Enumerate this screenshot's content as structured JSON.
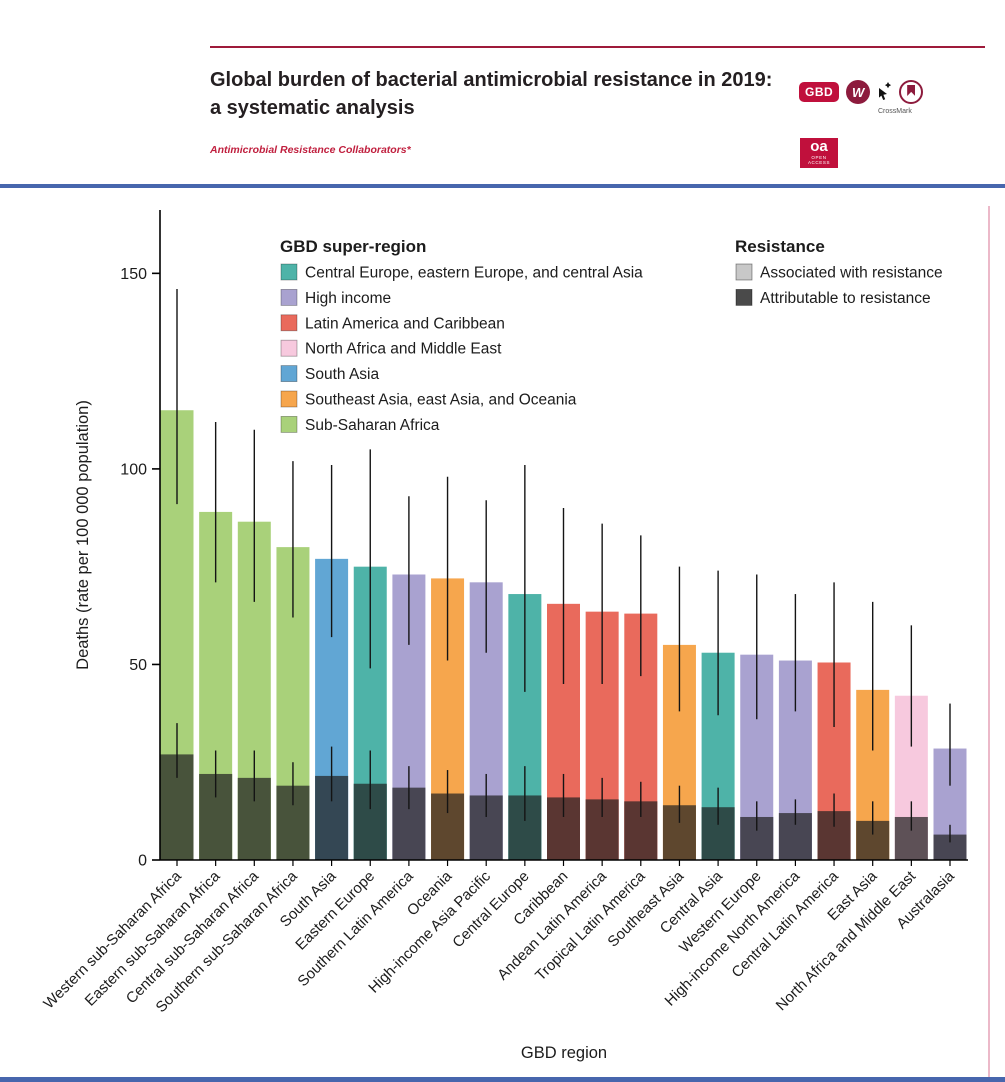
{
  "header": {
    "title_line1": "Global burden of bacterial antimicrobial resistance in 2019:",
    "title_line2": "a systematic analysis",
    "authors": "Antimicrobial Resistance Collaborators*",
    "gbd_badge": "GBD",
    "wellcome_letter": "W",
    "crossmark_label": "CrossMark",
    "oa_badge": "oa",
    "oa_sub": "OPEN ACCESS"
  },
  "accent_colors": {
    "lancet_red": "#9e1a3a",
    "divider_blue": "#4766ad",
    "page_edge_pink": "#ecb9c9"
  },
  "chart_data": {
    "type": "bar",
    "title": "",
    "xlabel": "GBD region",
    "ylabel": "Deaths (rate per 100 000 population)",
    "ylim": [
      0,
      165
    ],
    "yticks": [
      0,
      50,
      100,
      150
    ],
    "grid": false,
    "legend_position": "top-inside",
    "error_bars": true,
    "legend": {
      "super_region_title": "GBD super-region",
      "super_regions": [
        {
          "name": "Central Europe, eastern Europe, and central Asia",
          "color": "#4eb3a8"
        },
        {
          "name": "High income",
          "color": "#a9a2d0"
        },
        {
          "name": "Latin America and Caribbean",
          "color": "#e96a5c"
        },
        {
          "name": "North Africa and Middle East",
          "color": "#f7c9de"
        },
        {
          "name": "South Asia",
          "color": "#61a6d4"
        },
        {
          "name": "Southeast Asia, east Asia, and Oceania",
          "color": "#f6a64d"
        },
        {
          "name": "Sub-Saharan Africa",
          "color": "#a9d17a"
        }
      ],
      "resistance_title": "Resistance",
      "resistance_items": [
        {
          "name": "Associated with resistance",
          "color": "#c8c8c8"
        },
        {
          "name": "Attributable to resistance",
          "color": "#4a4a4a"
        }
      ]
    },
    "regions": [
      {
        "label": "Western sub-Saharan Africa",
        "super_region": "Sub-Saharan Africa",
        "associated": 115,
        "associated_ci": [
          91,
          146
        ],
        "attributable": 27,
        "attributable_ci": [
          21,
          35
        ]
      },
      {
        "label": "Eastern sub-Saharan Africa",
        "super_region": "Sub-Saharan Africa",
        "associated": 89,
        "associated_ci": [
          71,
          112
        ],
        "attributable": 22,
        "attributable_ci": [
          16,
          28
        ]
      },
      {
        "label": "Central sub-Saharan Africa",
        "super_region": "Sub-Saharan Africa",
        "associated": 86.5,
        "associated_ci": [
          66,
          110
        ],
        "attributable": 21,
        "attributable_ci": [
          15,
          28
        ]
      },
      {
        "label": "Southern sub-Saharan Africa",
        "super_region": "Sub-Saharan Africa",
        "associated": 80,
        "associated_ci": [
          62,
          102
        ],
        "attributable": 19,
        "attributable_ci": [
          14,
          25
        ]
      },
      {
        "label": "South Asia",
        "super_region": "South Asia",
        "associated": 77,
        "associated_ci": [
          57,
          101
        ],
        "attributable": 21.5,
        "attributable_ci": [
          15,
          29
        ]
      },
      {
        "label": "Eastern Europe",
        "super_region": "Central Europe, eastern Europe, and central Asia",
        "associated": 75,
        "associated_ci": [
          49,
          105
        ],
        "attributable": 19.5,
        "attributable_ci": [
          13,
          28
        ]
      },
      {
        "label": "Southern Latin America",
        "super_region": "High income",
        "associated": 73,
        "associated_ci": [
          55,
          93
        ],
        "attributable": 18.5,
        "attributable_ci": [
          13,
          24
        ]
      },
      {
        "label": "Oceania",
        "super_region": "Southeast Asia, east Asia, and Oceania",
        "associated": 72,
        "associated_ci": [
          51,
          98
        ],
        "attributable": 17,
        "attributable_ci": [
          12,
          23
        ]
      },
      {
        "label": "High-income Asia Pacific",
        "super_region": "High income",
        "associated": 71,
        "associated_ci": [
          53,
          92
        ],
        "attributable": 16.5,
        "attributable_ci": [
          11,
          22
        ]
      },
      {
        "label": "Central Europe",
        "super_region": "Central Europe, eastern Europe, and central Asia",
        "associated": 68,
        "associated_ci": [
          43,
          101
        ],
        "attributable": 16.5,
        "attributable_ci": [
          10,
          24
        ]
      },
      {
        "label": "Caribbean",
        "super_region": "Latin America and Caribbean",
        "associated": 65.5,
        "associated_ci": [
          45,
          90
        ],
        "attributable": 16,
        "attributable_ci": [
          11,
          22
        ]
      },
      {
        "label": "Andean Latin America",
        "super_region": "Latin America and Caribbean",
        "associated": 63.5,
        "associated_ci": [
          45,
          86
        ],
        "attributable": 15.5,
        "attributable_ci": [
          11,
          21
        ]
      },
      {
        "label": "Tropical Latin America",
        "super_region": "Latin America and Caribbean",
        "associated": 63,
        "associated_ci": [
          47,
          83
        ],
        "attributable": 15,
        "attributable_ci": [
          11,
          20
        ]
      },
      {
        "label": "Southeast Asia",
        "super_region": "Southeast Asia, east Asia, and Oceania",
        "associated": 55,
        "associated_ci": [
          38,
          75
        ],
        "attributable": 14,
        "attributable_ci": [
          9.5,
          19
        ]
      },
      {
        "label": "Central Asia",
        "super_region": "Central Europe, eastern Europe, and central Asia",
        "associated": 53,
        "associated_ci": [
          37,
          74
        ],
        "attributable": 13.5,
        "attributable_ci": [
          9,
          18.5
        ]
      },
      {
        "label": "Western Europe",
        "super_region": "High income",
        "associated": 52.5,
        "associated_ci": [
          36,
          73
        ],
        "attributable": 11,
        "attributable_ci": [
          7.5,
          15
        ]
      },
      {
        "label": "High-income North America",
        "super_region": "High income",
        "associated": 51,
        "associated_ci": [
          38,
          68
        ],
        "attributable": 12,
        "attributable_ci": [
          9,
          15.5
        ]
      },
      {
        "label": "Central Latin America",
        "super_region": "Latin America and Caribbean",
        "associated": 50.5,
        "associated_ci": [
          34,
          71
        ],
        "attributable": 12.5,
        "attributable_ci": [
          8.5,
          17
        ]
      },
      {
        "label": "East Asia",
        "super_region": "Southeast Asia, east Asia, and Oceania",
        "associated": 43.5,
        "associated_ci": [
          28,
          66
        ],
        "attributable": 10,
        "attributable_ci": [
          6.5,
          15
        ]
      },
      {
        "label": "North Africa and Middle East",
        "super_region": "North Africa and Middle East",
        "associated": 42,
        "associated_ci": [
          29,
          60
        ],
        "attributable": 11,
        "attributable_ci": [
          7.5,
          15
        ]
      },
      {
        "label": "Australasia",
        "super_region": "High income",
        "associated": 28.5,
        "associated_ci": [
          19,
          40
        ],
        "attributable": 6.5,
        "attributable_ci": [
          4.5,
          9
        ]
      }
    ]
  }
}
